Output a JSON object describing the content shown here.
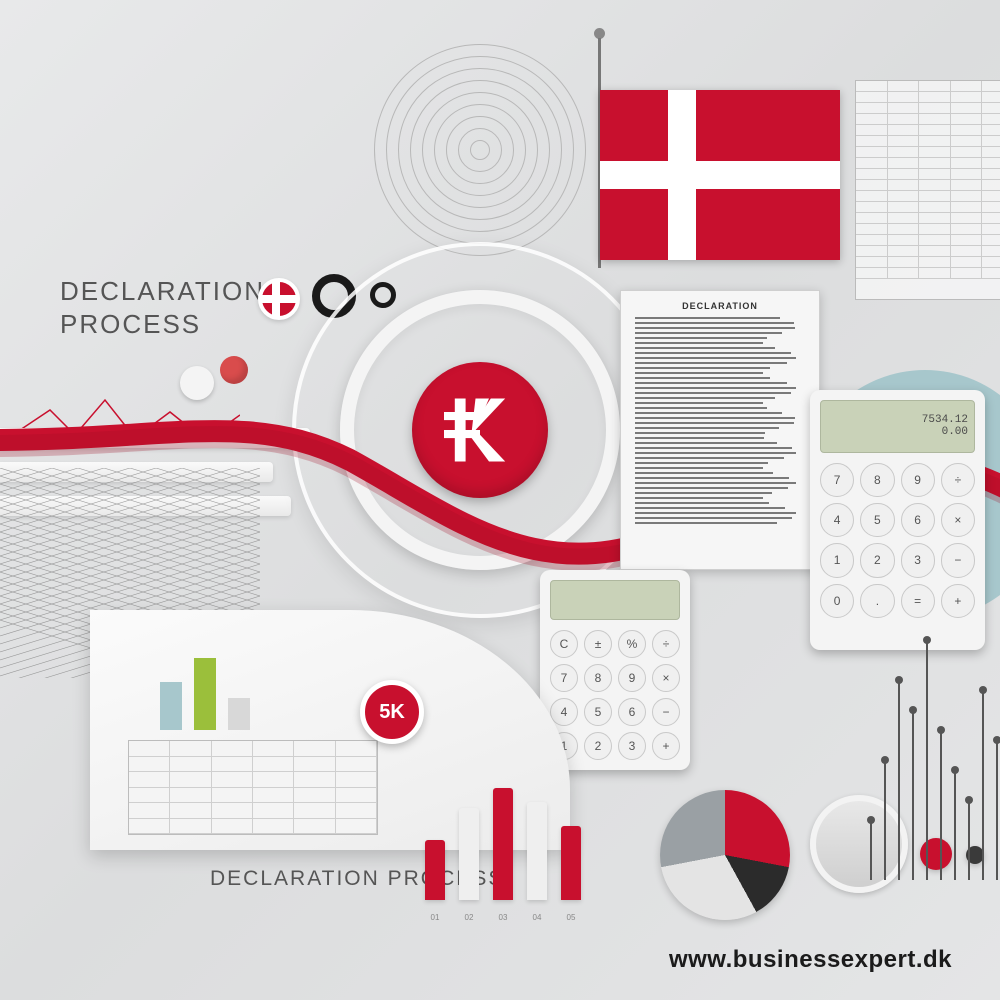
{
  "colors": {
    "red": "#c8102e",
    "white": "#ffffff",
    "bg": "#e4e5e6",
    "blue_disc": "#a7c7cc",
    "text": "#555555",
    "dark": "#1b1b1b"
  },
  "heading": {
    "line1": "DECLARATION",
    "line2": "PROCESS"
  },
  "bottom_label": "DECLARATION PROCESS",
  "doc_title": "DECLARATION",
  "badge_label": "5K",
  "url": "www.businessexpert.dk",
  "tiny_bars": {
    "heights": [
      48,
      72,
      32
    ],
    "colors": [
      "#a7c7cc",
      "#9bbf3b",
      "#d8d8d8"
    ]
  },
  "column_chart": {
    "heights": [
      60,
      92,
      112,
      98,
      74
    ],
    "colors": [
      "#c8102e",
      "#efefef",
      "#c8102e",
      "#efefef",
      "#c8102e"
    ],
    "labels": [
      "01",
      "02",
      "03",
      "04",
      "05"
    ]
  },
  "pie": {
    "slices": [
      {
        "color": "#c8102e",
        "pct": 28
      },
      {
        "color": "#2b2b2b",
        "pct": 14
      },
      {
        "color": "#e4e4e4",
        "pct": 30
      },
      {
        "color": "#9aa0a4",
        "pct": 28
      }
    ]
  },
  "calc_big": {
    "screen": [
      "7534.12",
      "0.00"
    ],
    "keys": [
      "7",
      "8",
      "9",
      "÷",
      "4",
      "5",
      "6",
      "×",
      "1",
      "2",
      "3",
      "−",
      "0",
      ".",
      "=",
      "+"
    ]
  },
  "calc_small": {
    "screen": [
      ""
    ],
    "keys": [
      "C",
      "±",
      "%",
      "÷",
      "7",
      "8",
      "9",
      "×",
      "4",
      "5",
      "6",
      "−",
      "1",
      "2",
      "3",
      "+"
    ]
  },
  "pins": {
    "heights": [
      60,
      120,
      200,
      170,
      240,
      150,
      110,
      80,
      190,
      140
    ]
  },
  "top_rings": {
    "count": 9,
    "step": 12
  }
}
